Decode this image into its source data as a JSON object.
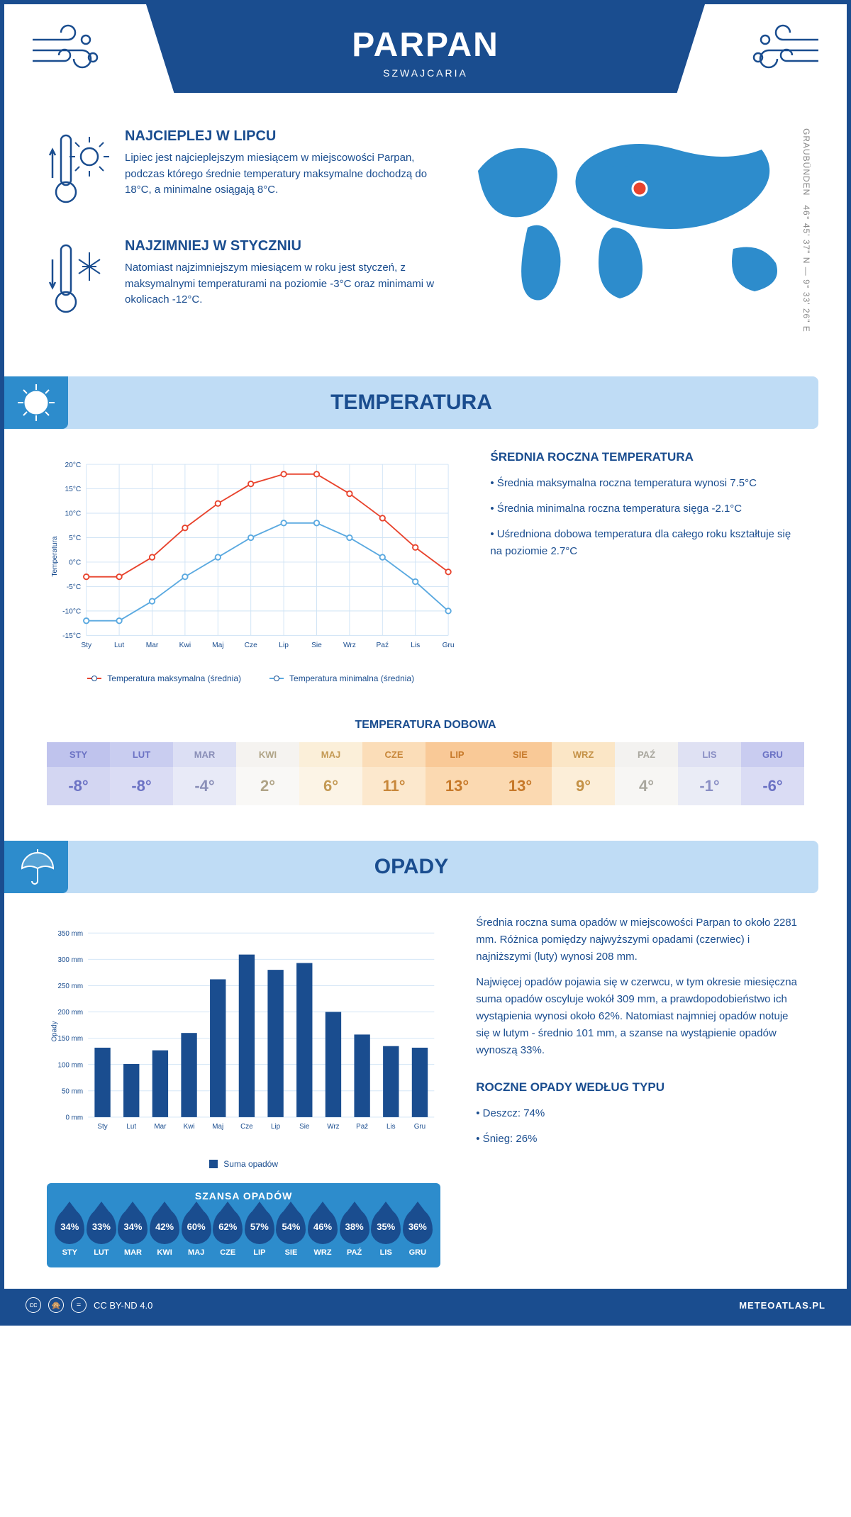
{
  "header": {
    "title": "PARPAN",
    "subtitle": "SZWAJCARIA"
  },
  "coords": {
    "text": "46° 45' 37\" N — 9° 33' 26\" E",
    "region": "GRAUBÜNDEN"
  },
  "map": {
    "marker_color": "#e8432d",
    "land_color": "#2d8ccc"
  },
  "warmest": {
    "title": "NAJCIEPLEJ W LIPCU",
    "text": "Lipiec jest najcieplejszym miesiącem w miejscowości Parpan, podczas którego średnie temperatury maksymalne dochodzą do 18°C, a minimalne osiągają 8°C."
  },
  "coldest": {
    "title": "NAJZIMNIEJ W STYCZNIU",
    "text": "Natomiast najzimniejszym miesiącem w roku jest styczeń, z maksymalnymi temperaturami na poziomie -3°C oraz minimami w okolicach -12°C."
  },
  "sections": {
    "temperature": "TEMPERATURA",
    "precipitation": "OPADY"
  },
  "temp_chart": {
    "type": "line",
    "y_label": "Temperatura",
    "months": [
      "Sty",
      "Lut",
      "Mar",
      "Kwi",
      "Maj",
      "Cze",
      "Lip",
      "Sie",
      "Wrz",
      "Paź",
      "Lis",
      "Gru"
    ],
    "yticks": [
      -15,
      -10,
      -5,
      0,
      5,
      10,
      15,
      20
    ],
    "ytick_labels": [
      "-15°C",
      "-10°C",
      "-5°C",
      "0°C",
      "5°C",
      "10°C",
      "15°C",
      "20°C"
    ],
    "ylim": [
      -15,
      20
    ],
    "max_series": {
      "color": "#e8432d",
      "values": [
        -3,
        -3,
        1,
        7,
        12,
        16,
        18,
        18,
        14,
        9,
        3,
        -2
      ],
      "label": "Temperatura maksymalna (średnia)"
    },
    "min_series": {
      "color": "#5aa9e0",
      "values": [
        -12,
        -12,
        -8,
        -3,
        1,
        5,
        8,
        8,
        5,
        1,
        -4,
        -10
      ],
      "label": "Temperatura minimalna (średnia)"
    },
    "grid_color": "#cfe3f5",
    "line_width": 2,
    "marker": "circle",
    "marker_size": 4
  },
  "temp_side": {
    "title": "ŚREDNIA ROCZNA TEMPERATURA",
    "bullets": [
      "• Średnia maksymalna roczna temperatura wynosi 7.5°C",
      "• Średnia minimalna roczna temperatura sięga -2.1°C",
      "• Uśredniona dobowa temperatura dla całego roku kształtuje się na poziomie 2.7°C"
    ]
  },
  "daily": {
    "title": "TEMPERATURA DOBOWA",
    "months": [
      "STY",
      "LUT",
      "MAR",
      "KWI",
      "MAJ",
      "CZE",
      "LIP",
      "SIE",
      "WRZ",
      "PAŹ",
      "LIS",
      "GRU"
    ],
    "values": [
      "-8°",
      "-8°",
      "-4°",
      "2°",
      "6°",
      "11°",
      "13°",
      "13°",
      "9°",
      "4°",
      "-1°",
      "-6°"
    ],
    "head_colors": [
      "#bfc3ed",
      "#c9cdf0",
      "#dcdff4",
      "#f5f3f0",
      "#fbefd9",
      "#fbddb8",
      "#f9c997",
      "#f9c997",
      "#fbe6c6",
      "#f3f2f0",
      "#dfe1f3",
      "#c9ccf0"
    ],
    "val_colors": [
      "#d3d6f2",
      "#dadcf4",
      "#e8eaf7",
      "#f9f8f6",
      "#fcf4e6",
      "#fce8cd",
      "#fbd9b1",
      "#fbd9b1",
      "#fceed8",
      "#f7f6f4",
      "#eaecf6",
      "#dadcf4"
    ],
    "text_colors": [
      "#6b72c4",
      "#6b72c4",
      "#8a8fb8",
      "#b0a487",
      "#c49a55",
      "#c8873a",
      "#c7792a",
      "#c7792a",
      "#c49146",
      "#a9a79e",
      "#8a8fc4",
      "#6b72c4"
    ]
  },
  "precip_chart": {
    "type": "bar",
    "y_label": "Opady",
    "months": [
      "Sty",
      "Lut",
      "Mar",
      "Kwi",
      "Maj",
      "Cze",
      "Lip",
      "Sie",
      "Wrz",
      "Paź",
      "Lis",
      "Gru"
    ],
    "values": [
      132,
      101,
      127,
      160,
      262,
      309,
      280,
      293,
      200,
      157,
      135,
      132
    ],
    "yticks": [
      0,
      50,
      100,
      150,
      200,
      250,
      300,
      350
    ],
    "ytick_labels": [
      "0 mm",
      "50 mm",
      "100 mm",
      "150 mm",
      "200 mm",
      "250 mm",
      "300 mm",
      "350 mm"
    ],
    "ylim": [
      0,
      350
    ],
    "bar_color": "#1a4d8f",
    "legend": "Suma opadów",
    "grid_color": "#cfe3f5",
    "bar_width": 0.55
  },
  "precip_side": {
    "p1": "Średnia roczna suma opadów w miejscowości Parpan to około 2281 mm. Różnica pomiędzy najwyższymi opadami (czerwiec) i najniższymi (luty) wynosi 208 mm.",
    "p2": "Najwięcej opadów pojawia się w czerwcu, w tym okresie miesięczna suma opadów oscyluje wokół 309 mm, a prawdopodobieństwo ich wystąpienia wynosi około 62%. Natomiast najmniej opadów notuje się w lutym - średnio 101 mm, a szanse na wystąpienie opadów wynoszą 33%."
  },
  "rain_chance": {
    "title": "SZANSA OPADÓW",
    "months": [
      "STY",
      "LUT",
      "MAR",
      "KWI",
      "MAJ",
      "CZE",
      "LIP",
      "SIE",
      "WRZ",
      "PAŹ",
      "LIS",
      "GRU"
    ],
    "values": [
      "34%",
      "33%",
      "34%",
      "42%",
      "60%",
      "62%",
      "57%",
      "54%",
      "46%",
      "38%",
      "35%",
      "36%"
    ]
  },
  "precip_type": {
    "title": "ROCZNE OPADY WEDŁUG TYPU",
    "items": [
      "• Deszcz: 74%",
      "• Śnieg: 26%"
    ]
  },
  "footer": {
    "license": "CC BY-ND 4.0",
    "brand": "METEOATLAS.PL"
  },
  "colors": {
    "primary": "#1a4d8f",
    "light": "#bfdcf5",
    "mid": "#2d8ccc"
  }
}
